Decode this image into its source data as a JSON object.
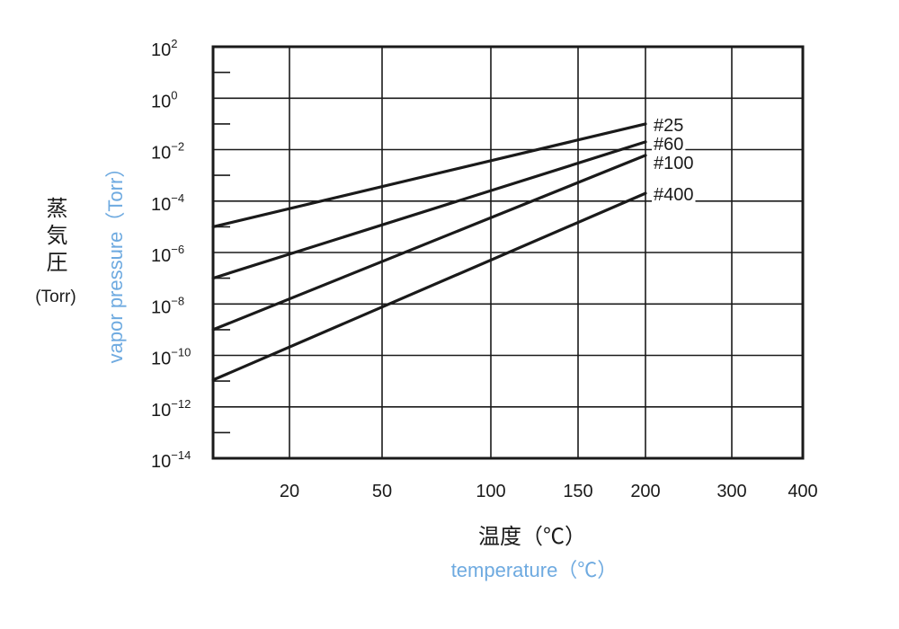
{
  "chart_data": {
    "type": "line",
    "xlabel": "温度（℃）",
    "xlabel_en": "temperature（℃）",
    "ylabel": "蒸気圧",
    "ylabel_unit": "(Torr)",
    "ylabel_en": "vapor pressure（Torr）",
    "x_scale": "reciprocal",
    "xlim": [
      0,
      400
    ],
    "x_ticks": [
      20,
      50,
      100,
      150,
      200,
      300,
      400
    ],
    "y_scale": "log",
    "ylim": [
      1e-14,
      100
    ],
    "y_ticks": [
      {
        "value": 100,
        "base": "10",
        "exp": "2"
      },
      {
        "value": 1,
        "base": "10",
        "exp": "0"
      },
      {
        "value": 0.01,
        "base": "10",
        "exp": "−2"
      },
      {
        "value": 0.0001,
        "base": "10",
        "exp": "−4"
      },
      {
        "value": 1e-06,
        "base": "10",
        "exp": "−6"
      },
      {
        "value": 1e-08,
        "base": "10",
        "exp": "−8"
      },
      {
        "value": 1e-10,
        "base": "10",
        "exp": "−10"
      },
      {
        "value": 1e-12,
        "base": "10",
        "exp": "−12"
      },
      {
        "value": 1e-14,
        "base": "10",
        "exp": "−14"
      }
    ],
    "grid": true,
    "legend": "inline-right",
    "series": [
      {
        "name": "#25",
        "x": [
          0,
          200
        ],
        "y": [
          1e-05,
          0.1
        ]
      },
      {
        "name": "#60",
        "x": [
          0,
          200
        ],
        "y": [
          1e-07,
          0.02
        ]
      },
      {
        "name": "#100",
        "x": [
          0,
          200
        ],
        "y": [
          1e-09,
          0.006
        ]
      },
      {
        "name": "#400",
        "x": [
          0,
          200
        ],
        "y": [
          1.1e-11,
          0.0002
        ]
      }
    ],
    "colors": {
      "axis": "#1a1a1a",
      "series": "#1a1a1a",
      "english_labels": "#6eaae0"
    }
  }
}
